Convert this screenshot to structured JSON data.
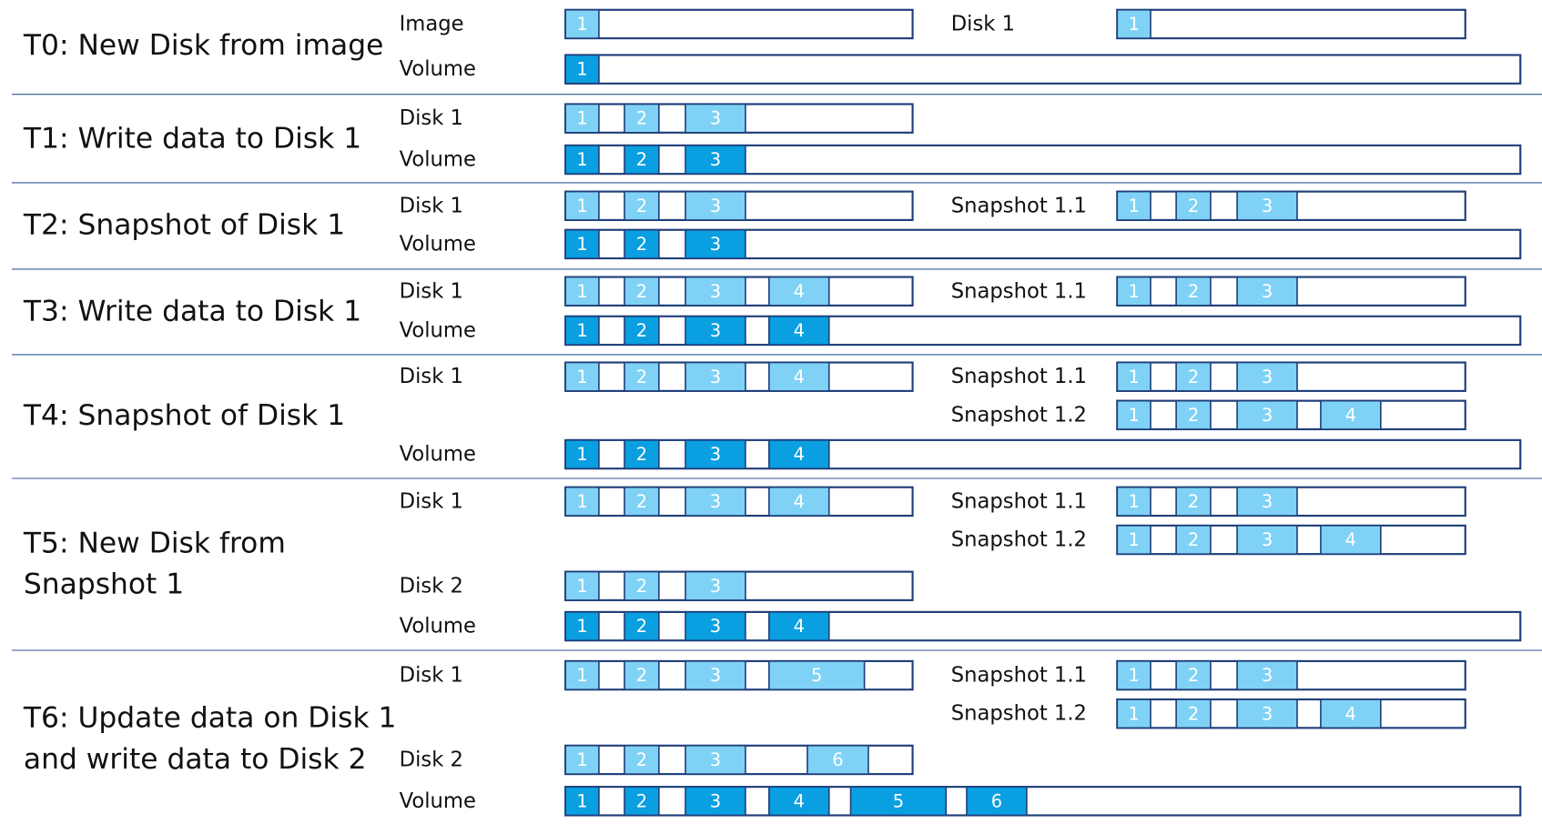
{
  "rows": [
    {
      "title": [
        "T0: New Disk from image"
      ],
      "items": [
        {
          "name": "Image",
          "blocks": [
            "1"
          ]
        },
        {
          "name": "Disk 1",
          "blocks": [
            "1"
          ]
        },
        {
          "name": "Volume",
          "blocks": [
            "1"
          ]
        }
      ]
    },
    {
      "title": [
        "T1: Write data to Disk 1"
      ],
      "items": [
        {
          "name": "Disk 1",
          "blocks": [
            "1",
            "2",
            "3"
          ]
        },
        {
          "name": "Volume",
          "blocks": [
            "1",
            "2",
            "3"
          ]
        }
      ]
    },
    {
      "title": [
        "T2: Snapshot of Disk 1"
      ],
      "items": [
        {
          "name": "Disk 1",
          "blocks": [
            "1",
            "2",
            "3"
          ]
        },
        {
          "name": "Snapshot  1.1",
          "blocks": [
            "1",
            "2",
            "3"
          ]
        },
        {
          "name": "Volume",
          "blocks": [
            "1",
            "2",
            "3"
          ]
        }
      ]
    },
    {
      "title": [
        "T3: Write data to Disk 1"
      ],
      "items": [
        {
          "name": "Disk 1",
          "blocks": [
            "1",
            "2",
            "3",
            "4"
          ]
        },
        {
          "name": "Snapshot  1.1",
          "blocks": [
            "1",
            "2",
            "3"
          ]
        },
        {
          "name": "Volume",
          "blocks": [
            "1",
            "2",
            "3",
            "4"
          ]
        }
      ]
    },
    {
      "title": [
        "T4: Snapshot of Disk 1"
      ],
      "items": [
        {
          "name": "Disk 1",
          "blocks": [
            "1",
            "2",
            "3",
            "4"
          ]
        },
        {
          "name": "Snapshot  1.1",
          "blocks": [
            "1",
            "2",
            "3"
          ]
        },
        {
          "name": "Snapshot  1.2",
          "blocks": [
            "1",
            "2",
            "3",
            "4"
          ]
        },
        {
          "name": "Volume",
          "blocks": [
            "1",
            "2",
            "3",
            "4"
          ]
        }
      ]
    },
    {
      "title": [
        "T5: New Disk from",
        "Snapshot 1"
      ],
      "items": [
        {
          "name": "Disk 1",
          "blocks": [
            "1",
            "2",
            "3",
            "4"
          ]
        },
        {
          "name": "Snapshot  1.1",
          "blocks": [
            "1",
            "2",
            "3"
          ]
        },
        {
          "name": "Snapshot  1.2",
          "blocks": [
            "1",
            "2",
            "3",
            "4"
          ]
        },
        {
          "name": "Disk 2",
          "blocks": [
            "1",
            "2",
            "3"
          ]
        },
        {
          "name": "Volume",
          "blocks": [
            "1",
            "2",
            "3",
            "4"
          ]
        }
      ]
    },
    {
      "title": [
        "T6: Update data on Disk 1",
        "and write data to Disk 2"
      ],
      "items": [
        {
          "name": "Disk 1",
          "blocks": [
            "1",
            "2",
            "3",
            "5"
          ]
        },
        {
          "name": "Snapshot  1.1",
          "blocks": [
            "1",
            "2",
            "3"
          ]
        },
        {
          "name": "Snapshot  1.2",
          "blocks": [
            "1",
            "2",
            "3",
            "4"
          ]
        },
        {
          "name": "Disk 2",
          "blocks": [
            "1",
            "2",
            "3",
            "6"
          ]
        },
        {
          "name": "Volume",
          "blocks": [
            "1",
            "2",
            "3",
            "4",
            "5",
            "6"
          ]
        }
      ]
    }
  ]
}
